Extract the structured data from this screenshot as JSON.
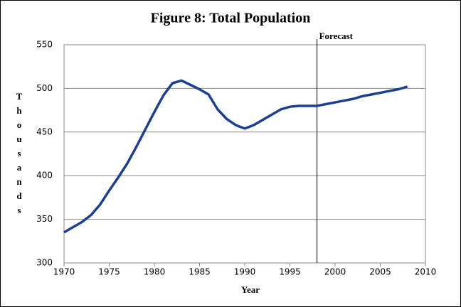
{
  "chart_data": {
    "type": "line",
    "title": "Figure 8:  Total Population",
    "x_label": "Year",
    "y_label": "Thousands",
    "x": [
      1970,
      1971,
      1972,
      1973,
      1974,
      1975,
      1976,
      1977,
      1978,
      1979,
      1980,
      1981,
      1982,
      1983,
      1984,
      1985,
      1986,
      1987,
      1988,
      1989,
      1990,
      1991,
      1992,
      1993,
      1994,
      1995,
      1996,
      1997,
      1998,
      1999,
      2000,
      2001,
      2002,
      2003,
      2004,
      2005,
      2006,
      2007,
      2008
    ],
    "series": [
      {
        "name": "Total Population",
        "color": "#1c3f94",
        "values": [
          335,
          341,
          347,
          355,
          367,
          383,
          398,
          414,
          433,
          453,
          473,
          492,
          506,
          509,
          504,
          499,
          493,
          476,
          465,
          458,
          454,
          458,
          464,
          470,
          476,
          479,
          480,
          480,
          480,
          482,
          484,
          486,
          488,
          491,
          493,
          495,
          497,
          499,
          502
        ]
      }
    ],
    "annotations": [
      {
        "text": "Forecast",
        "x": 1998
      }
    ],
    "xlim": [
      1970,
      2010
    ],
    "xticks": [
      1970,
      1975,
      1980,
      1985,
      1990,
      1995,
      2000,
      2005,
      2010
    ],
    "ylim": [
      300,
      550
    ],
    "yticks": [
      300,
      350,
      400,
      450,
      500,
      550
    ],
    "grid": true
  }
}
